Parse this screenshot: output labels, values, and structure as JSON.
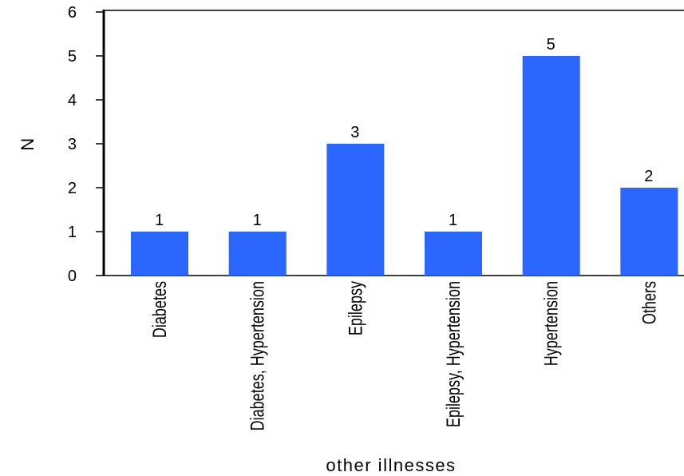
{
  "chart_data": {
    "type": "bar",
    "title": "",
    "xlabel": "other illnesses",
    "ylabel": "N",
    "categories": [
      "Diabetes",
      "Diabetes, Hypertension",
      "Epilepsy",
      "Epilepsy, Hypertension",
      "Hypertension",
      "Others"
    ],
    "values": [
      1,
      1,
      3,
      1,
      5,
      2
    ],
    "data_labels": [
      "1",
      "1",
      "3",
      "1",
      "5",
      "2"
    ],
    "yticks": [
      0,
      1,
      2,
      3,
      4,
      5,
      6
    ],
    "ylim": [
      0,
      6
    ],
    "grid": false,
    "legend": "none",
    "colors": {
      "bar": "#2b66ff",
      "axis": "#000000"
    }
  }
}
